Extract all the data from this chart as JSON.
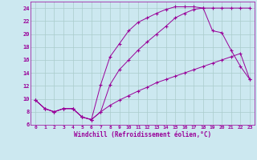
{
  "xlabel": "Windchill (Refroidissement éolien,°C)",
  "bg_color": "#cce8f0",
  "line_color": "#990099",
  "grid_color": "#aacccc",
  "xlim": [
    -0.5,
    23.5
  ],
  "ylim": [
    6,
    25
  ],
  "xticks": [
    0,
    1,
    2,
    3,
    4,
    5,
    6,
    7,
    8,
    9,
    10,
    11,
    12,
    13,
    14,
    15,
    16,
    17,
    18,
    19,
    20,
    21,
    22,
    23
  ],
  "yticks": [
    6,
    8,
    10,
    12,
    14,
    16,
    18,
    20,
    22,
    24
  ],
  "line1_x": [
    0,
    1,
    2,
    3,
    4,
    5,
    6,
    7,
    8,
    9,
    10,
    11,
    12,
    13,
    14,
    15,
    16,
    17,
    18,
    19,
    20,
    21,
    22,
    23
  ],
  "line1_y": [
    9.8,
    8.5,
    8.0,
    8.5,
    8.5,
    7.2,
    6.8,
    12.2,
    16.5,
    18.5,
    20.5,
    21.8,
    22.5,
    23.2,
    23.8,
    24.2,
    24.2,
    24.2,
    24.0,
    24.0,
    24.0,
    24.0,
    24.0,
    24.0
  ],
  "line2_x": [
    0,
    1,
    2,
    3,
    4,
    5,
    6,
    7,
    8,
    9,
    10,
    11,
    12,
    13,
    14,
    15,
    16,
    17,
    18,
    19,
    20,
    21,
    22,
    23
  ],
  "line2_y": [
    9.8,
    8.5,
    8.0,
    8.5,
    8.5,
    7.2,
    6.8,
    8.0,
    12.2,
    14.5,
    16.0,
    17.5,
    18.8,
    20.0,
    21.2,
    22.5,
    23.2,
    23.8,
    24.0,
    20.5,
    20.2,
    17.5,
    15.0,
    13.0
  ],
  "line3_x": [
    0,
    1,
    2,
    3,
    4,
    5,
    6,
    7,
    8,
    9,
    10,
    11,
    12,
    13,
    14,
    15,
    16,
    17,
    18,
    19,
    20,
    21,
    22,
    23
  ],
  "line3_y": [
    9.8,
    8.5,
    8.0,
    8.5,
    8.5,
    7.2,
    6.8,
    8.0,
    9.0,
    9.8,
    10.5,
    11.2,
    11.8,
    12.5,
    13.0,
    13.5,
    14.0,
    14.5,
    15.0,
    15.5,
    16.0,
    16.5,
    17.0,
    13.0
  ]
}
